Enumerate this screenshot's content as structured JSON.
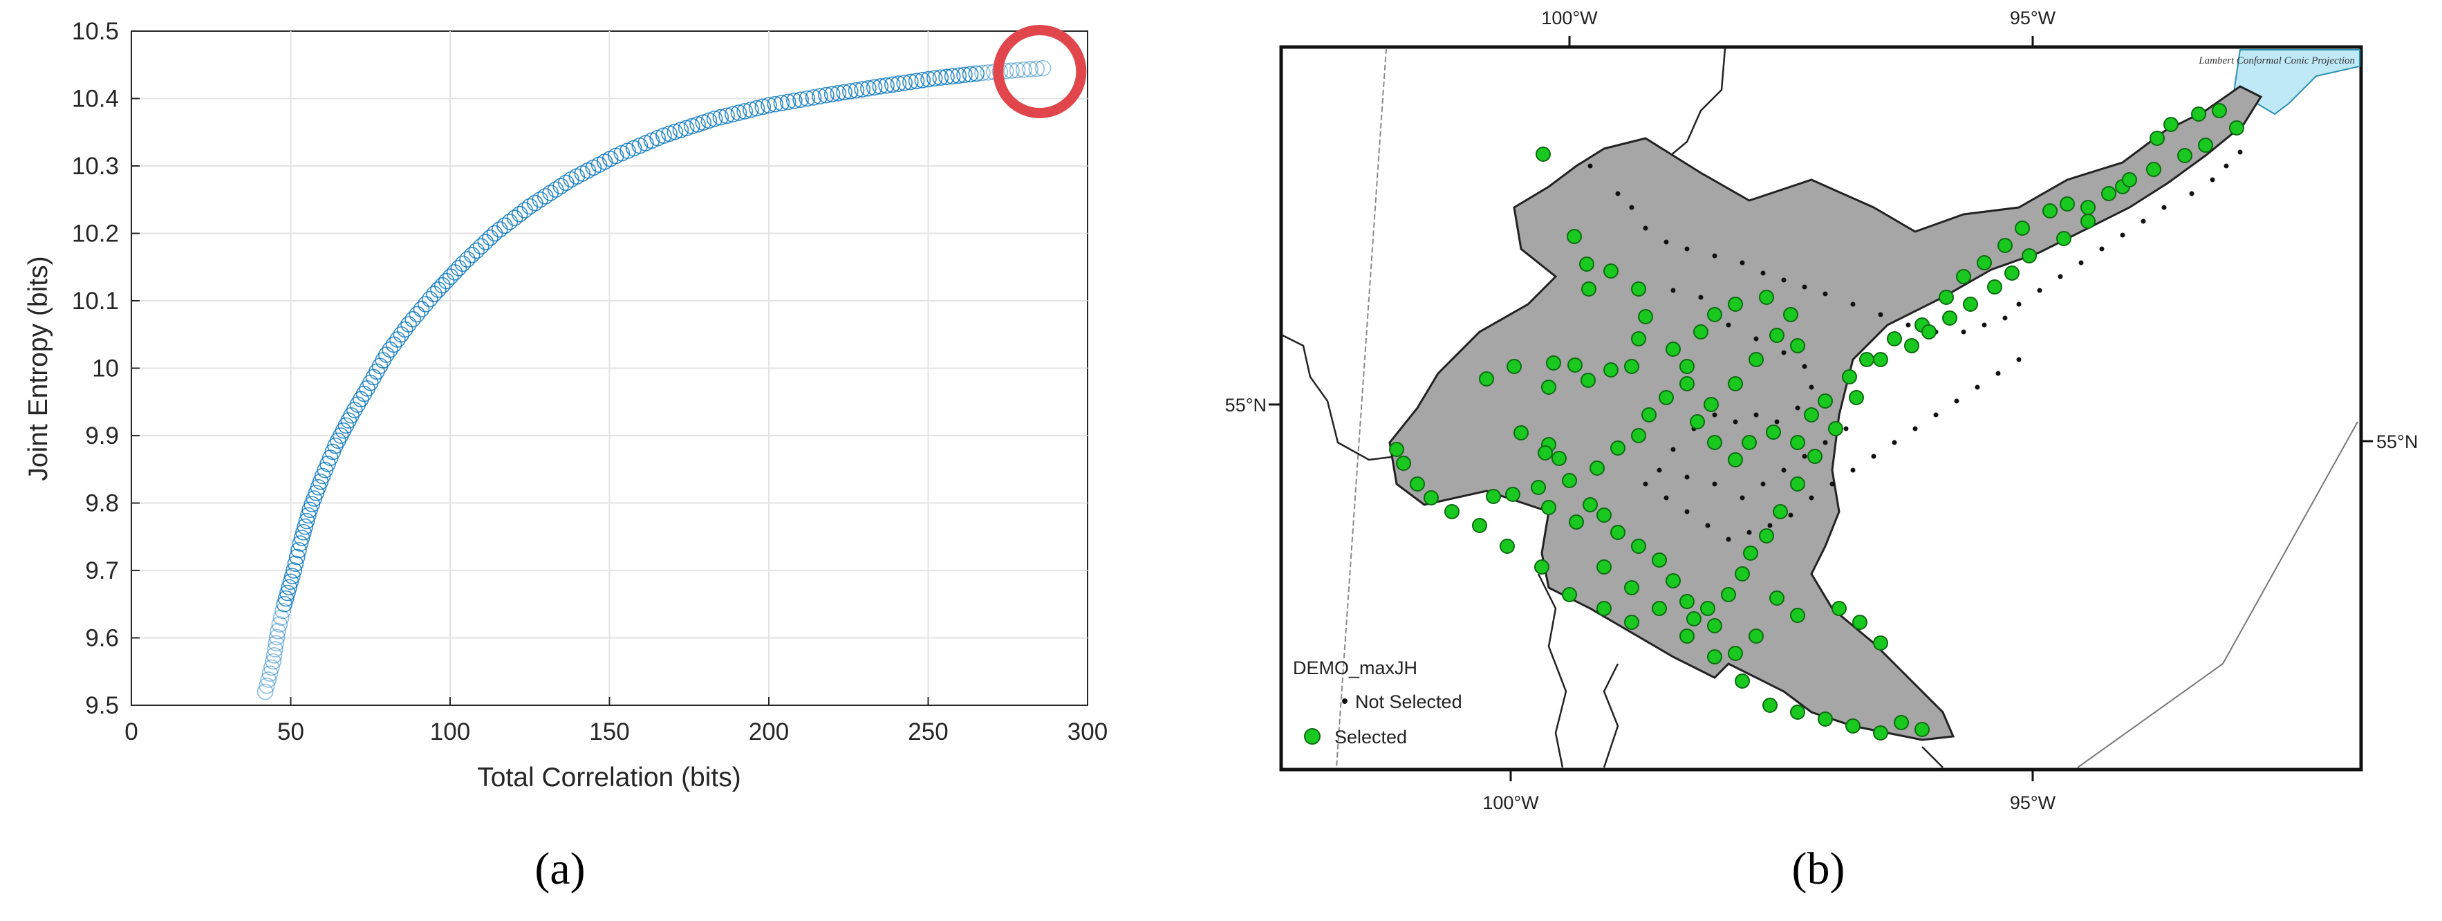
{
  "colors": {
    "marker": "#0072BD",
    "highlight": "#E0464B",
    "land": "#A6A6A6",
    "selected": "#19C91F",
    "water": "#BFE9F7"
  },
  "chart_data": [
    {
      "type": "scatter",
      "xlabel": "Total Correlation (bits)",
      "ylabel": "Joint Entropy (bits)",
      "xlim": [
        0,
        300
      ],
      "ylim": [
        9.5,
        10.5
      ],
      "xticks": [
        "0",
        "50",
        "100",
        "150",
        "200",
        "250",
        "300"
      ],
      "yticks": [
        "9.5",
        "9.6",
        "9.7",
        "9.8",
        "9.9",
        "10",
        "10.1",
        "10.2",
        "10.3",
        "10.4",
        "10.5"
      ],
      "grid": true,
      "marker": "open-circle",
      "points": [
        [
          42,
          9.52
        ],
        [
          44.5,
          9.565
        ],
        [
          46,
          9.61
        ],
        [
          48,
          9.65
        ],
        [
          51,
          9.7
        ],
        [
          53,
          9.74
        ],
        [
          56,
          9.79
        ],
        [
          60,
          9.84
        ],
        [
          64,
          9.885
        ],
        [
          69,
          9.93
        ],
        [
          74,
          9.97
        ],
        [
          80,
          10.02
        ],
        [
          87,
          10.065
        ],
        [
          95,
          10.11
        ],
        [
          104,
          10.155
        ],
        [
          114,
          10.2
        ],
        [
          125,
          10.24
        ],
        [
          138,
          10.28
        ],
        [
          152,
          10.315
        ],
        [
          167,
          10.345
        ],
        [
          183,
          10.37
        ],
        [
          200,
          10.39
        ],
        [
          218,
          10.405
        ],
        [
          235,
          10.418
        ],
        [
          252,
          10.43
        ],
        [
          267,
          10.438
        ],
        [
          278,
          10.442
        ],
        [
          286,
          10.445
        ]
      ],
      "highlight_point": [
        285,
        10.44
      ],
      "caption": "(a)"
    },
    {
      "type": "map",
      "top_ticks": [
        "100°W",
        "95°W"
      ],
      "bottom_ticks": [
        "100°W",
        "95°W"
      ],
      "left_ticks": [
        "55°N"
      ],
      "right_ticks": [
        "55°N"
      ],
      "projection_label": "Lambert Conformal Conic Projection",
      "legend_title": "DEMO_maxJH",
      "legend_items": [
        "Not Selected",
        "Selected"
      ],
      "caption": "(b)"
    }
  ]
}
